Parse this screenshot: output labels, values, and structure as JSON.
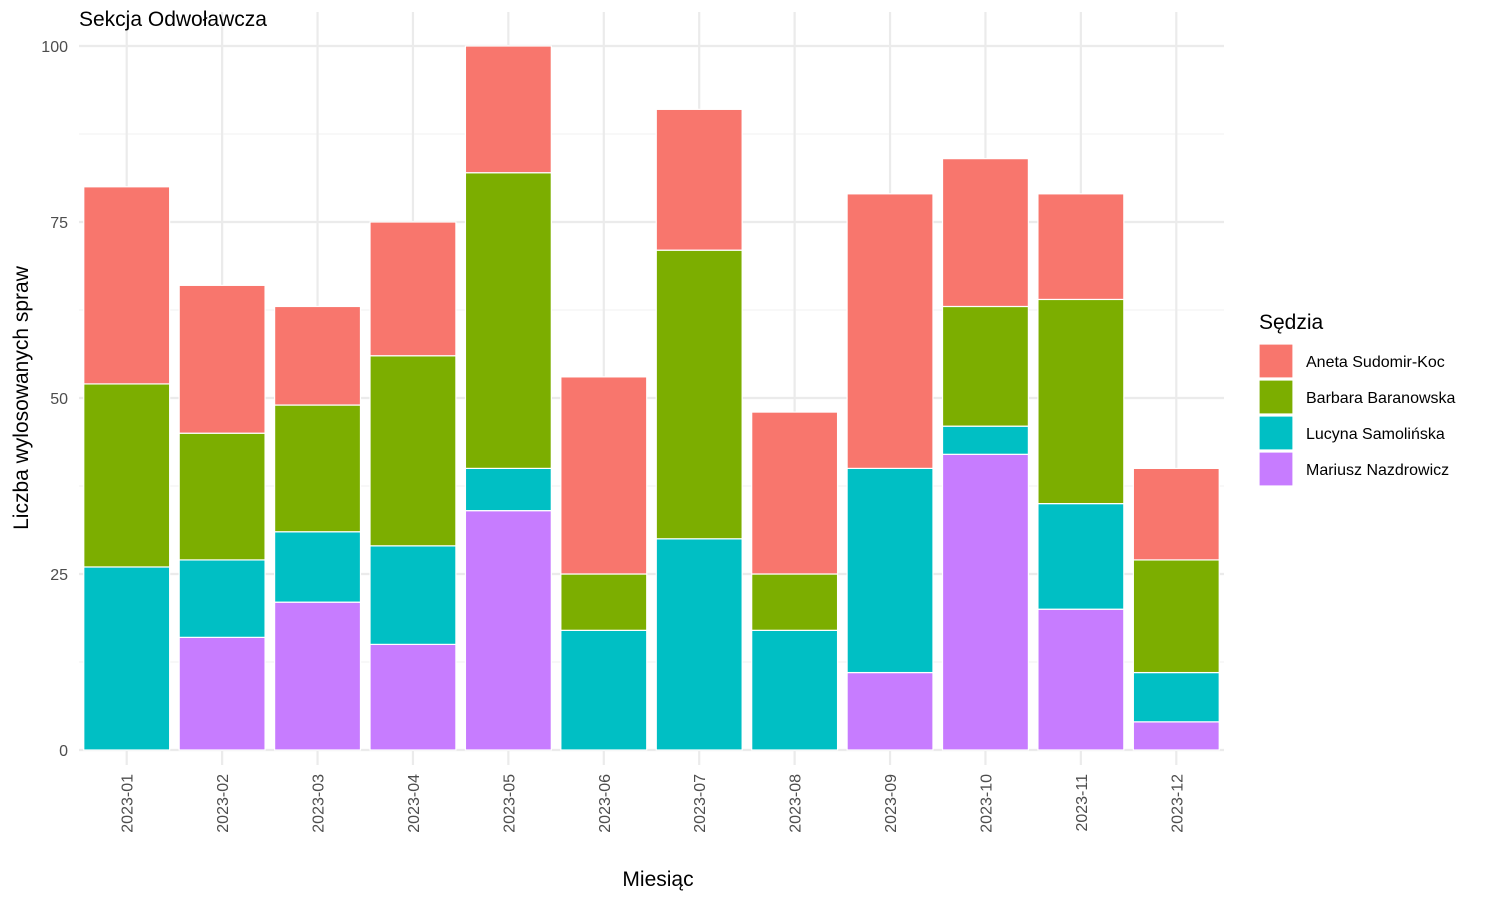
{
  "chart_data": {
    "type": "bar",
    "stacked": true,
    "title": "Sekcja Odwoławcza",
    "xlabel": "Miesiąc",
    "ylabel": "Liczba wylosowanych spraw",
    "ylim": [
      0,
      100
    ],
    "yticks": [
      "0",
      "25",
      "50",
      "75",
      "100"
    ],
    "grid": true,
    "legend_position": "right",
    "legend_title": "Sędzia",
    "categories": [
      "2023-01",
      "2023-02",
      "2023-03",
      "2023-04",
      "2023-05",
      "2023-06",
      "2023-07",
      "2023-08",
      "2023-09",
      "2023-10",
      "2023-11",
      "2023-12"
    ],
    "series": [
      {
        "name": "Aneta Sudomir-Koc",
        "color": "#F8766D",
        "values": [
          28,
          21,
          14,
          19,
          18,
          28,
          20,
          23,
          39,
          21,
          15,
          13
        ]
      },
      {
        "name": "Barbara Baranowska",
        "color": "#7CAE00",
        "values": [
          26,
          18,
          18,
          27,
          42,
          8,
          41,
          8,
          0,
          17,
          29,
          16
        ]
      },
      {
        "name": "Lucyna Samolińska",
        "color": "#00BFC4",
        "values": [
          26,
          11,
          10,
          14,
          6,
          17,
          30,
          17,
          29,
          4,
          15,
          7
        ]
      },
      {
        "name": "Mariusz Nazdrowicz",
        "color": "#C77CFF",
        "values": [
          0,
          16,
          21,
          15,
          34,
          0,
          0,
          0,
          11,
          42,
          20,
          4
        ]
      }
    ]
  }
}
